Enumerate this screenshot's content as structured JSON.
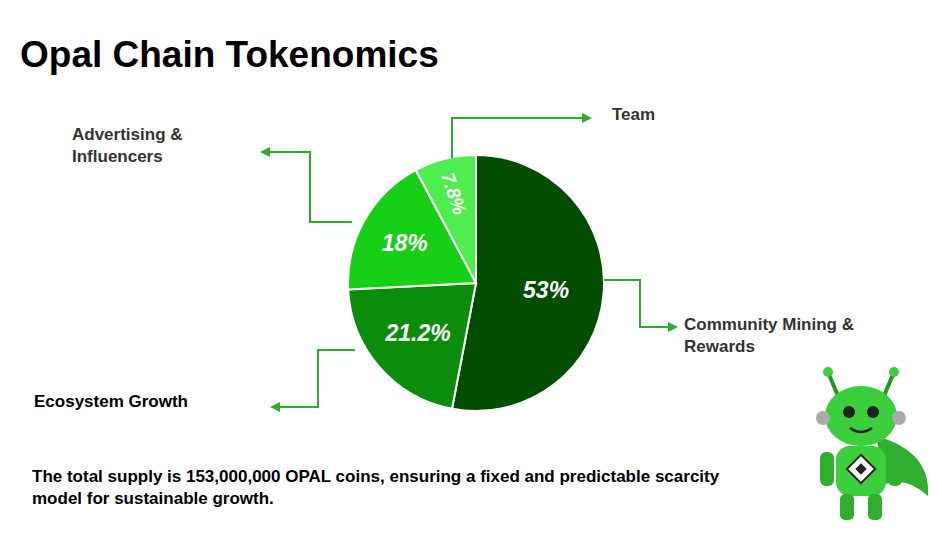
{
  "chart_data": {
    "type": "pie",
    "title": "Opal Chain Tokenomics",
    "categories": [
      "Community Mining & Rewards",
      "Ecosystem Growth",
      "Advertising & Influencers",
      "Team"
    ],
    "values": [
      53,
      21.2,
      18,
      7.8
    ],
    "value_labels": [
      "53%",
      "21.2%",
      "18%",
      "7.8%"
    ],
    "colors": [
      "#004d00",
      "#0b8c0b",
      "#17cf17",
      "#4fee4f"
    ],
    "data_labels": true,
    "annotations": [
      "The total supply is 153,000,000 OPAL coins, ensuring a fixed and predictable scarcity model for sustainable growth."
    ]
  }
}
